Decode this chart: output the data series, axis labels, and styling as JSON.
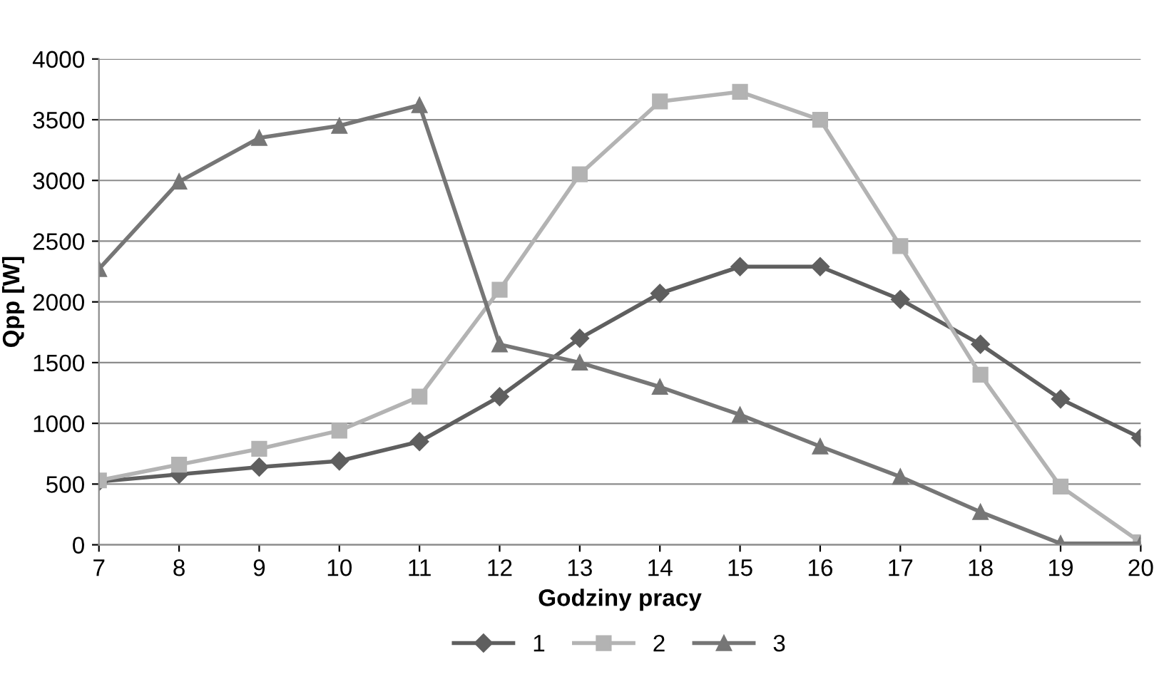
{
  "chart_data": {
    "type": "line",
    "xlabel": "Godziny pracy",
    "ylabel": "Qpp [W]",
    "x": [
      7,
      8,
      9,
      10,
      11,
      12,
      13,
      14,
      15,
      16,
      17,
      18,
      19,
      20
    ],
    "series": [
      {
        "name": "1",
        "color": "#5f5f5f",
        "marker": "diamond",
        "values": [
          520,
          580,
          640,
          690,
          850,
          1220,
          1700,
          2070,
          2290,
          2290,
          2020,
          1650,
          1200,
          880
        ]
      },
      {
        "name": "2",
        "color": "#b3b3b3",
        "marker": "square",
        "values": [
          530,
          660,
          790,
          940,
          1220,
          2100,
          3050,
          3650,
          3730,
          3500,
          2460,
          1400,
          480,
          20
        ]
      },
      {
        "name": "3",
        "color": "#767676",
        "marker": "triangle",
        "values": [
          2270,
          2990,
          3350,
          3450,
          3620,
          1650,
          1500,
          1300,
          1070,
          810,
          560,
          270,
          10,
          10
        ]
      }
    ],
    "xlim": [
      7,
      20
    ],
    "xticks": [
      7,
      8,
      9,
      10,
      11,
      12,
      13,
      14,
      15,
      16,
      17,
      18,
      19,
      20
    ],
    "ylim": [
      0,
      4000
    ],
    "yticks": [
      0,
      500,
      1000,
      1500,
      2000,
      2500,
      3000,
      3500,
      4000
    ],
    "grid": "y",
    "legend": "bottom",
    "line_style": "solid"
  }
}
